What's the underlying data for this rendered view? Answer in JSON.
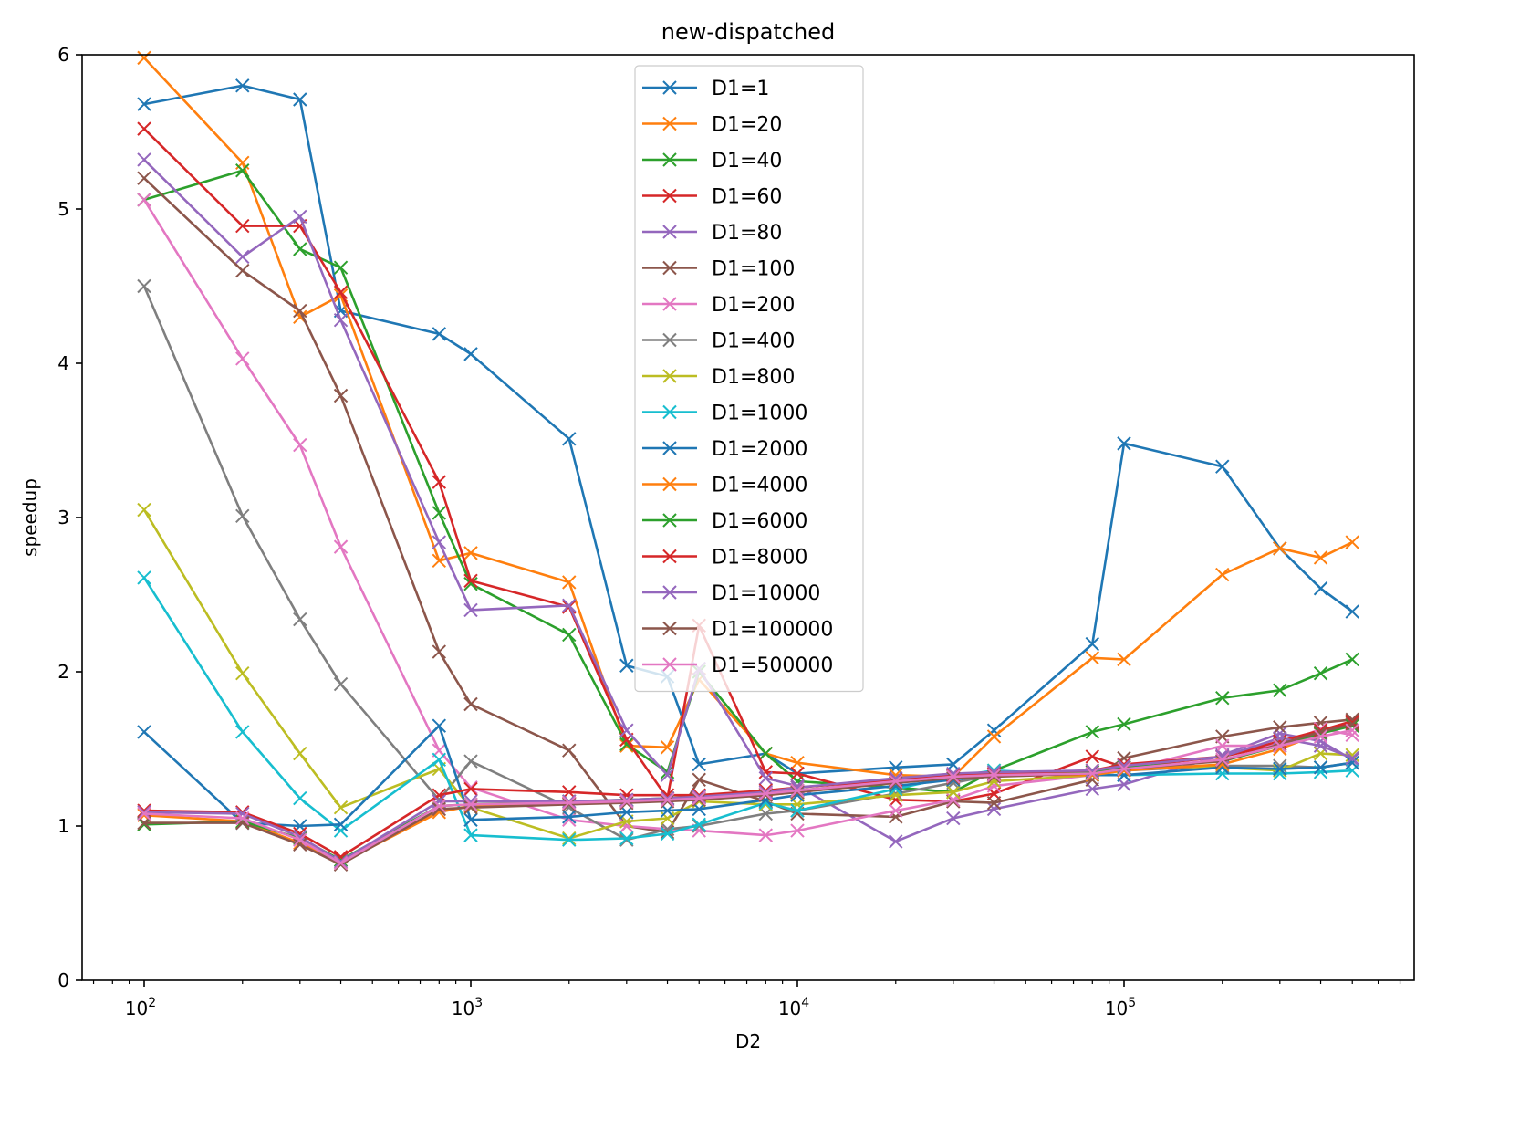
{
  "chart_data": {
    "type": "line",
    "title": "new-dispatched",
    "xlabel": "D2",
    "ylabel": "speedup",
    "xscale": "log",
    "xlim": [
      65,
      1000000
    ],
    "ylim": [
      0,
      6
    ],
    "yticks": [
      0,
      1,
      2,
      3,
      4,
      5,
      6
    ],
    "xticks": [
      {
        "value": 100,
        "base": "10",
        "exp": "2"
      },
      {
        "value": 1000,
        "base": "10",
        "exp": "3"
      },
      {
        "value": 10000,
        "base": "10",
        "exp": "4"
      },
      {
        "value": 100000,
        "base": "10",
        "exp": "5"
      }
    ],
    "legend_position": "upper-center",
    "marker": "x",
    "x": [
      100,
      200,
      300,
      400,
      800,
      1000,
      2000,
      3000,
      4000,
      5000,
      8000,
      10000,
      20000,
      30000,
      40000,
      80000,
      100000,
      200000,
      300000,
      400000,
      500000
    ],
    "series": [
      {
        "name": "D1=1",
        "color": "#1f77b4",
        "values": [
          5.68,
          5.8,
          5.71,
          4.34,
          4.19,
          4.06,
          3.51,
          2.04,
          1.97,
          1.4,
          1.47,
          1.34,
          1.38,
          1.4,
          1.62,
          2.18,
          3.48,
          3.33,
          2.8,
          2.54,
          2.39
        ]
      },
      {
        "name": "D1=20",
        "color": "#ff7f0e",
        "values": [
          5.98,
          5.3,
          4.3,
          4.44,
          2.72,
          2.77,
          2.58,
          1.52,
          1.51,
          1.95,
          1.47,
          1.41,
          1.33,
          1.32,
          1.58,
          2.09,
          2.08,
          2.63,
          2.8,
          2.74,
          2.84
        ]
      },
      {
        "name": "D1=40",
        "color": "#2ca02c",
        "values": [
          5.06,
          5.25,
          4.74,
          4.62,
          3.03,
          2.57,
          2.24,
          1.53,
          1.35,
          2.0,
          1.47,
          1.29,
          1.25,
          1.22,
          1.36,
          1.61,
          1.66,
          1.83,
          1.88,
          1.99,
          2.08
        ]
      },
      {
        "name": "D1=60",
        "color": "#d62728",
        "values": [
          5.52,
          4.89,
          4.89,
          4.46,
          3.23,
          2.59,
          2.42,
          1.56,
          1.18,
          2.3,
          1.35,
          1.34,
          1.17,
          1.16,
          1.21,
          1.45,
          1.38,
          1.45,
          1.53,
          1.62,
          1.68
        ]
      },
      {
        "name": "D1=80",
        "color": "#9467bd",
        "values": [
          5.32,
          4.69,
          4.95,
          4.28,
          2.84,
          2.4,
          2.43,
          1.62,
          1.33,
          2.02,
          1.31,
          1.26,
          0.9,
          1.05,
          1.11,
          1.24,
          1.27,
          1.46,
          1.6,
          1.55,
          1.43
        ]
      },
      {
        "name": "D1=100",
        "color": "#8c564b",
        "values": [
          5.2,
          4.6,
          4.34,
          3.79,
          2.13,
          1.79,
          1.49,
          1.0,
          0.96,
          1.3,
          1.16,
          1.08,
          1.06,
          1.16,
          1.15,
          1.3,
          1.44,
          1.58,
          1.64,
          1.67,
          1.69
        ]
      },
      {
        "name": "D1=200",
        "color": "#e377c2",
        "values": [
          5.06,
          4.03,
          3.47,
          2.81,
          1.49,
          1.25,
          1.04,
          1.0,
          0.98,
          0.97,
          0.94,
          0.97,
          1.1,
          1.17,
          1.26,
          1.33,
          1.36,
          1.52,
          1.52,
          1.63,
          1.59
        ]
      },
      {
        "name": "D1=400",
        "color": "#7f7f7f",
        "values": [
          4.5,
          3.01,
          2.34,
          1.92,
          1.17,
          1.42,
          1.12,
          0.91,
          0.98,
          1.0,
          1.08,
          1.1,
          1.21,
          1.28,
          1.33,
          1.35,
          1.36,
          1.39,
          1.39,
          1.38,
          1.41
        ]
      },
      {
        "name": "D1=800",
        "color": "#bcbd22",
        "values": [
          3.05,
          1.99,
          1.47,
          1.12,
          1.37,
          1.12,
          0.92,
          1.03,
          1.05,
          1.16,
          1.14,
          1.14,
          1.2,
          1.22,
          1.29,
          1.33,
          1.39,
          1.38,
          1.36,
          1.47,
          1.46
        ]
      },
      {
        "name": "D1=1000",
        "color": "#17becf",
        "values": [
          2.61,
          1.61,
          1.18,
          0.97,
          1.43,
          0.94,
          0.91,
          0.92,
          0.95,
          1.01,
          1.15,
          1.1,
          1.24,
          1.32,
          1.36,
          1.33,
          1.33,
          1.34,
          1.34,
          1.35,
          1.36
        ]
      },
      {
        "name": "D1=2000",
        "color": "#1f77b4",
        "values": [
          1.61,
          1.02,
          1.0,
          1.01,
          1.65,
          1.04,
          1.06,
          1.09,
          1.1,
          1.11,
          1.17,
          1.2,
          1.26,
          1.3,
          1.33,
          1.33,
          1.33,
          1.38,
          1.37,
          1.38,
          1.41
        ]
      },
      {
        "name": "D1=4000",
        "color": "#ff7f0e",
        "values": [
          1.07,
          1.03,
          0.89,
          0.76,
          1.09,
          1.13,
          1.15,
          1.16,
          1.17,
          1.18,
          1.2,
          1.22,
          1.28,
          1.32,
          1.33,
          1.33,
          1.36,
          1.4,
          1.5,
          1.6,
          1.66
        ]
      },
      {
        "name": "D1=6000",
        "color": "#2ca02c",
        "values": [
          1.01,
          1.03,
          0.92,
          0.78,
          1.13,
          1.14,
          1.16,
          1.17,
          1.18,
          1.19,
          1.21,
          1.23,
          1.29,
          1.33,
          1.34,
          1.35,
          1.38,
          1.42,
          1.52,
          1.6,
          1.65
        ]
      },
      {
        "name": "D1=8000",
        "color": "#d62728",
        "values": [
          1.1,
          1.09,
          0.95,
          0.8,
          1.2,
          1.24,
          1.22,
          1.2,
          1.2,
          1.2,
          1.23,
          1.25,
          1.3,
          1.33,
          1.34,
          1.36,
          1.4,
          1.45,
          1.55,
          1.62,
          1.67
        ]
      },
      {
        "name": "D1=10000",
        "color": "#9467bd",
        "values": [
          1.09,
          1.08,
          0.93,
          0.77,
          1.16,
          1.16,
          1.16,
          1.17,
          1.18,
          1.19,
          1.22,
          1.25,
          1.31,
          1.34,
          1.35,
          1.36,
          1.39,
          1.45,
          1.57,
          1.52,
          1.44
        ]
      },
      {
        "name": "D1=100000",
        "color": "#8c564b",
        "values": [
          1.02,
          1.02,
          0.88,
          0.75,
          1.11,
          1.12,
          1.14,
          1.15,
          1.16,
          1.17,
          1.2,
          1.22,
          1.28,
          1.31,
          1.32,
          1.34,
          1.37,
          1.42,
          1.53,
          1.61,
          1.66
        ]
      },
      {
        "name": "D1=500000",
        "color": "#e377c2",
        "values": [
          1.08,
          1.05,
          0.91,
          0.76,
          1.13,
          1.14,
          1.15,
          1.16,
          1.17,
          1.18,
          1.21,
          1.23,
          1.29,
          1.32,
          1.33,
          1.34,
          1.37,
          1.43,
          1.52,
          1.58,
          1.62
        ]
      }
    ]
  }
}
